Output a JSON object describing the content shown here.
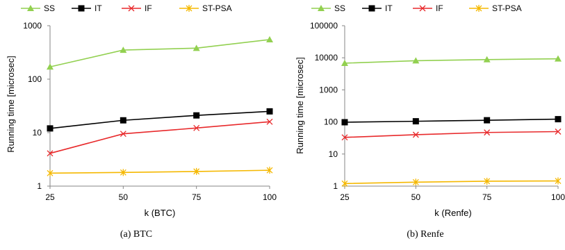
{
  "chart_data": [
    {
      "type": "line",
      "caption": "(a)  BTC",
      "xlabel": "k (BTC)",
      "ylabel": "Running time [microsec]",
      "y_scale": "log",
      "ylim": [
        1,
        1000
      ],
      "y_ticks": [
        "1",
        "10",
        "100",
        "1000"
      ],
      "x": [
        25,
        50,
        75,
        100
      ],
      "x_ticks": [
        "25",
        "50",
        "75",
        "100"
      ],
      "legend_position": "top",
      "gridlines": false,
      "series": [
        {
          "name": "SS",
          "color": "#92d050",
          "marker": "triangle",
          "values": [
            170,
            350,
            380,
            550
          ]
        },
        {
          "name": "IT",
          "color": "#000000",
          "marker": "square",
          "values": [
            12,
            17,
            21,
            25
          ]
        },
        {
          "name": "IF",
          "color": "#e8292b",
          "marker": "x",
          "values": [
            4.1,
            9.5,
            12.2,
            16
          ]
        },
        {
          "name": "ST-PSA",
          "color": "#f5b800",
          "marker": "asterisk",
          "values": [
            1.75,
            1.8,
            1.88,
            1.98
          ]
        }
      ]
    },
    {
      "type": "line",
      "caption": "(b)  Renfe",
      "xlabel": "k (Renfe)",
      "ylabel": "Running time [microsec]",
      "y_scale": "log",
      "ylim": [
        1,
        100000
      ],
      "y_ticks": [
        "1",
        "10",
        "100",
        "1000",
        "10000",
        "100000"
      ],
      "x": [
        25,
        50,
        75,
        100
      ],
      "x_ticks": [
        "25",
        "50",
        "75",
        "100"
      ],
      "legend_position": "top",
      "gridlines": false,
      "series": [
        {
          "name": "SS",
          "color": "#92d050",
          "marker": "triangle",
          "values": [
            6800,
            8100,
            8800,
            9300
          ]
        },
        {
          "name": "IT",
          "color": "#000000",
          "marker": "square",
          "values": [
            98,
            105,
            113,
            122
          ]
        },
        {
          "name": "IF",
          "color": "#e8292b",
          "marker": "x",
          "values": [
            33,
            40,
            47,
            50
          ]
        },
        {
          "name": "ST-PSA",
          "color": "#f5b800",
          "marker": "asterisk",
          "values": [
            1.2,
            1.33,
            1.42,
            1.45
          ]
        }
      ]
    }
  ]
}
